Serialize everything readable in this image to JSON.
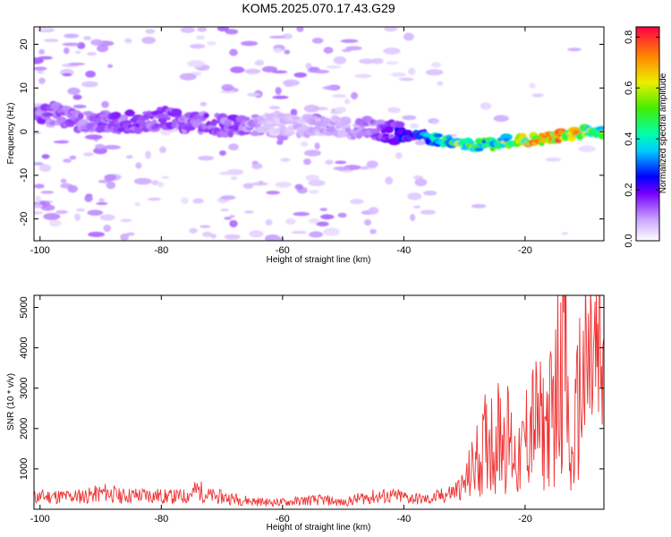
{
  "title": "KOM5.2025.070.17.43.G29",
  "chart_data": [
    {
      "type": "heatmap",
      "xlabel": "Height of straight line (km)",
      "ylabel": "Frequency (Hz)",
      "xlim": [
        -101,
        -7
      ],
      "ylim": [
        -25,
        24
      ],
      "xticks": [
        -100,
        -80,
        -60,
        -40,
        -20
      ],
      "yticks": [
        -20,
        -10,
        0,
        10,
        20
      ],
      "xtick_labels": [
        "-100",
        "-80",
        "-60",
        "-40",
        "-20"
      ],
      "ytick_labels": [
        "-20",
        "-10",
        "0",
        "10",
        "20"
      ],
      "colorbar": {
        "label": "Normalized spectral amplitude",
        "range": [
          0.0,
          0.84
        ],
        "ticks": [
          0.0,
          0.2,
          0.4,
          0.6,
          0.8
        ],
        "tick_labels": [
          "0.0",
          "0.2",
          "0.4",
          "0.6",
          "0.8"
        ]
      },
      "ridge": {
        "x": [
          -98,
          -92,
          -86,
          -80,
          -74,
          -68,
          -62,
          -56,
          -50,
          -46,
          -42,
          -38,
          -34,
          -30,
          -26,
          -22,
          -18,
          -14,
          -10,
          -7
        ],
        "frequency": [
          4,
          2,
          2,
          3,
          2,
          1,
          2,
          1,
          1,
          1,
          0,
          -1,
          -2,
          -3,
          -3,
          -2,
          -2,
          -1,
          0,
          0
        ],
        "amplitude": [
          0.15,
          0.14,
          0.16,
          0.17,
          0.15,
          0.16,
          0.06,
          0.08,
          0.09,
          0.12,
          0.2,
          0.3,
          0.45,
          0.62,
          0.48,
          0.6,
          0.72,
          0.75,
          0.6,
          0.5
        ]
      }
    },
    {
      "type": "line",
      "xlabel": "Height of straight line (km)",
      "ylabel": "SNR (10 * v/v)",
      "xlim": [
        -101,
        -7
      ],
      "ylim": [
        0,
        5300
      ],
      "xticks": [
        -100,
        -80,
        -60,
        -40,
        -20
      ],
      "yticks": [
        1000,
        2000,
        3000,
        4000,
        5000
      ],
      "xtick_labels": [
        "-100",
        "-80",
        "-60",
        "-40",
        "-20"
      ],
      "ytick_labels": [
        "1000",
        "2000",
        "3000",
        "4000",
        "5000"
      ],
      "series": [
        {
          "color": "#ee3333",
          "x": [
            -101,
            -98,
            -95,
            -92,
            -89,
            -87,
            -85,
            -82,
            -79,
            -76,
            -74,
            -72,
            -70,
            -68,
            -65,
            -62,
            -59,
            -56,
            -53,
            -50,
            -47,
            -44,
            -41,
            -38,
            -36,
            -34,
            -32,
            -30,
            -29,
            -28,
            -27,
            -26,
            -25,
            -24,
            -23,
            -22,
            -21,
            -20,
            -19,
            -18,
            -17,
            -16,
            -15,
            -14,
            -13.5,
            -13,
            -12.5,
            -12,
            -11,
            -10,
            -9,
            -8,
            -7
          ],
          "y": [
            300,
            320,
            310,
            340,
            420,
            330,
            340,
            350,
            310,
            320,
            480,
            330,
            300,
            260,
            200,
            170,
            180,
            220,
            230,
            160,
            280,
            320,
            320,
            260,
            240,
            320,
            420,
            600,
            900,
            1200,
            1400,
            1900,
            1600,
            2000,
            1800,
            1500,
            1100,
            1700,
            2200,
            2100,
            2000,
            2200,
            2600,
            4300,
            5200,
            2300,
            800,
            1500,
            2900,
            3200,
            3600,
            3500,
            3400
          ]
        }
      ]
    }
  ]
}
